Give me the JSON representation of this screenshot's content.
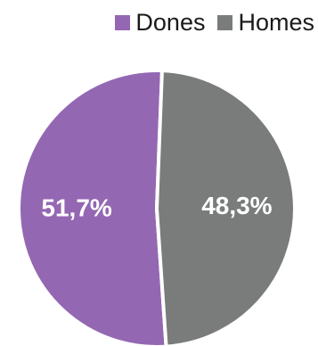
{
  "chart_data": {
    "type": "pie",
    "legend_position": "top-right",
    "slices": [
      {
        "name": "Dones",
        "value": 51.7,
        "label": "51,7%",
        "color": "#9467b3"
      },
      {
        "name": "Homes",
        "value": 48.3,
        "label": "48,3%",
        "color": "#7a7c7c"
      }
    ]
  }
}
